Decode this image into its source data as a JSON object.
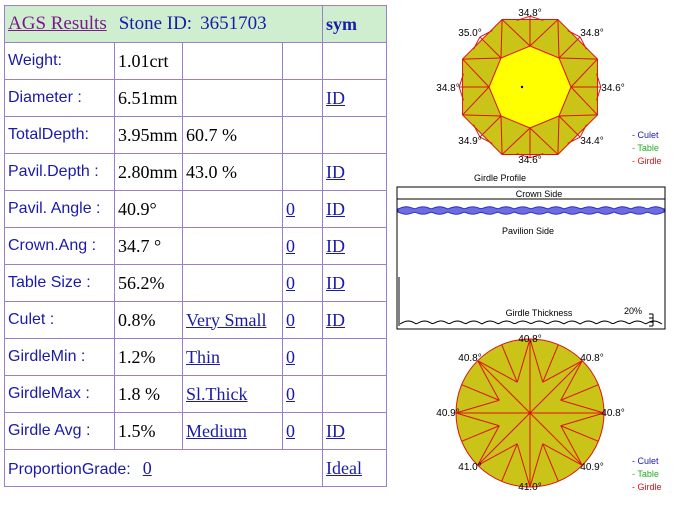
{
  "header": {
    "title": "AGS Results",
    "stone_label": "Stone ID:",
    "stone_id": "3651703",
    "sym": "sym"
  },
  "rows": [
    {
      "label": "Weight:",
      "value": "1.01crt",
      "extra": "",
      "link": "",
      "id": ""
    },
    {
      "label": "Diameter :",
      "value": "6.51mm",
      "extra": "",
      "link": "",
      "id": "ID"
    },
    {
      "label": "TotalDepth:",
      "value": "3.95mm",
      "extra": "60.7 %",
      "link": "",
      "id": ""
    },
    {
      "label": "Pavil.Depth :",
      "value": "2.80mm",
      "extra": "43.0 %",
      "link": "",
      "id": "ID"
    },
    {
      "label": "Pavil. Angle :",
      "value": "40.9°",
      "extra": "",
      "link": "0",
      "id": "ID "
    },
    {
      "label": "Crown.Ang :",
      "value": "34.7 °",
      "extra": "",
      "link": "0",
      "id": "ID"
    },
    {
      "label": "Table Size :",
      "value": "56.2%",
      "extra": "",
      "link": "0",
      "id": "ID"
    },
    {
      "label": "Culet :",
      "value": "0.8%",
      "extra": "Very Small",
      "link": "0",
      "id": "ID"
    },
    {
      "label": "GirdleMin :",
      "value": "1.2%",
      "extra": "Thin",
      "link": "0",
      "id": ""
    },
    {
      "label": "GirdleMax :",
      "value": "1.8 %",
      "extra": "Sl.Thick ",
      "link": "0",
      "id": ""
    },
    {
      "label": "Girdle Avg :",
      "value": "1.5%",
      "extra": "Medium ",
      "link": "0 ",
      "id": "ID"
    }
  ],
  "footer": {
    "label": "ProportionGrade:",
    "value": "0",
    "grade": "Ideal "
  },
  "top_diagram": {
    "angles": {
      "top": "34.8°",
      "top_left": "35.0°",
      "top_right": "34.8°",
      "left": "34.8°",
      "right": "34.6°",
      "bottom_left": "34.9°",
      "bottom_right": "34.4°",
      "bottom": "34.6°"
    },
    "legend": [
      "- Culet",
      "- Table",
      "- Girdle"
    ]
  },
  "profile": {
    "title": "Girdle Profile",
    "crown": "Crown Side",
    "pavilion": "Pavilion Side",
    "thickness": "Girdle Thickness",
    "percent": "20%"
  },
  "bottom_diagram": {
    "angles": {
      "top": "40.8°",
      "top_left": "40.8°",
      "top_right": "40.8°",
      "left": "40.9°",
      "right": "40.8°",
      "bottom_left": "41.0°",
      "bottom_right": "40.9°",
      "bottom": "41.0°"
    },
    "legend": [
      "- Culet",
      "- Table",
      "- Girdle"
    ]
  },
  "colors": {
    "culet": "#1a1aa8",
    "table": "#22aa22",
    "girdle": "#dd1111",
    "fill": "#c9c417",
    "table_fill": "#ffff00",
    "facet": "#dd1111"
  }
}
